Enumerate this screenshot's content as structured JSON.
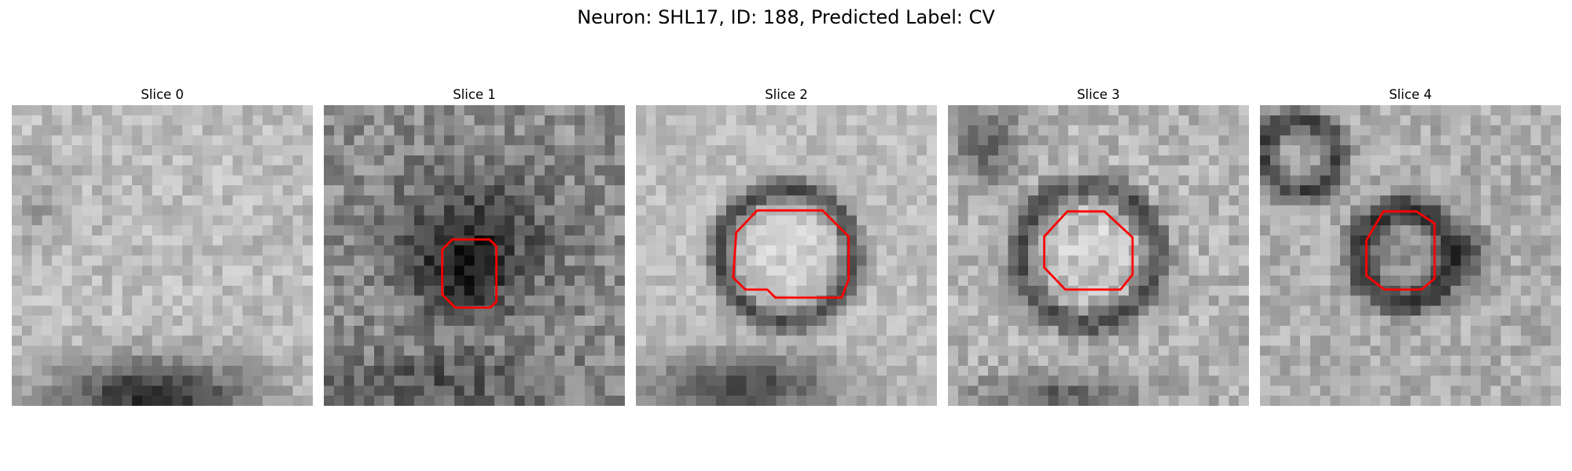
{
  "figure": {
    "title": "Neuron: SHL17, ID: 188, Predicted Label: CV"
  },
  "panels": [
    {
      "title": "Slice 0"
    },
    {
      "title": "Slice 1"
    },
    {
      "title": "Slice 2"
    },
    {
      "title": "Slice 3"
    },
    {
      "title": "Slice 4"
    }
  ],
  "colors": {
    "contour": "#ff0000",
    "background": "#ffffff"
  }
}
